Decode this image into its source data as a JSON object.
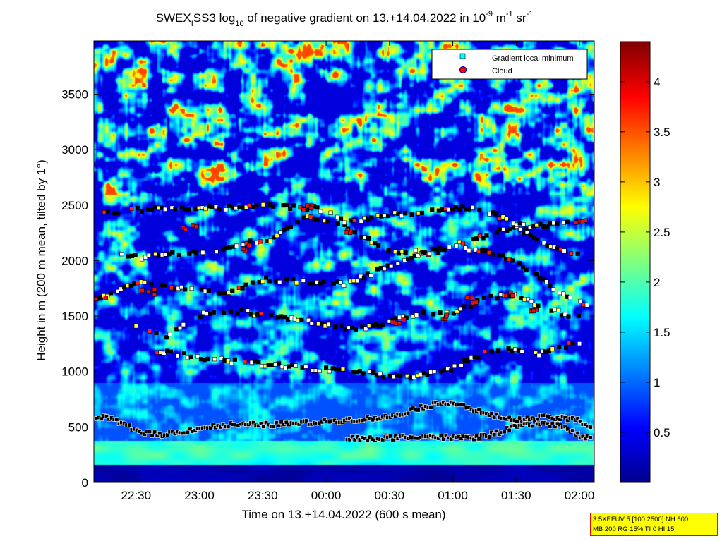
{
  "chart_data": {
    "type": "heatmap",
    "title": {
      "prefix": "SWEX",
      "prefix_sub": "I",
      "main": "SS3 log",
      "main_sub": "10",
      "rest": " of negative gradient on 13.+14.04.2022 in 10",
      "unit1_sup": "-9",
      "unit_m": " m",
      "unit2_sup": "-1",
      "unit_sr": " sr",
      "unit3_sup": "-1"
    },
    "xlabel": "Time on 13.+14.04.2022 (600 s mean)",
    "ylabel": "Height in m (200 m mean, tilted by 1°)",
    "x_ticks": [
      "22:30",
      "23:00",
      "23:30",
      "00:00",
      "00:30",
      "01:00",
      "01:30",
      "02:00"
    ],
    "y_ticks": [
      "0",
      "500",
      "1000",
      "1500",
      "2000",
      "2500",
      "3000",
      "3500"
    ],
    "xlim": [
      "22:10",
      "02:07"
    ],
    "ylim": [
      0,
      3980
    ],
    "colorbar": {
      "ticks": [
        "0.5",
        "1",
        "1.5",
        "2",
        "2.5",
        "3",
        "3.5",
        "4"
      ],
      "range": [
        0,
        4.4
      ],
      "colormap": "jet"
    },
    "legend": {
      "placement": "top-right",
      "entries": [
        {
          "label": "Gradient local minimum",
          "marker": "square",
          "color": "#00ffff"
        },
        {
          "label": "Cloud",
          "marker": "circle",
          "color": "#ff0000"
        }
      ]
    },
    "series": [
      {
        "name": "Gradient local minimum",
        "layers": [
          {
            "x": [
              "22:10",
              "22:20",
              "22:30",
              "22:40",
              "22:50",
              "23:00",
              "23:15",
              "23:30",
              "23:45",
              "00:00",
              "00:15",
              "00:30",
              "00:45",
              "01:00",
              "01:15",
              "01:30",
              "01:45",
              "02:00",
              "02:07"
            ],
            "y": [
              600,
              560,
              470,
              430,
              450,
              490,
              520,
              520,
              530,
              550,
              570,
              590,
              680,
              730,
              620,
              560,
              590,
              560,
              480
            ]
          },
          {
            "x": [
              "00:10",
              "00:20",
              "00:30",
              "00:45",
              "01:00",
              "01:10",
              "01:20",
              "01:30",
              "01:40",
              "01:50",
              "02:00",
              "02:07"
            ],
            "y": [
              400,
              390,
              400,
              420,
              400,
              400,
              440,
              500,
              530,
              520,
              420,
              380
            ]
          },
          {
            "x": [
              "22:40",
              "23:10",
              "23:40",
              "00:10",
              "00:40",
              "01:00",
              "01:20",
              "01:40",
              "02:00"
            ],
            "y": [
              1180,
              1100,
              1050,
              1000,
              950,
              1030,
              1210,
              1160,
              1270
            ]
          },
          {
            "x": [
              "22:30",
              "22:45",
              "23:00",
              "23:15",
              "23:30",
              "23:45",
              "00:00",
              "00:15",
              "00:30",
              "00:45",
              "01:00",
              "01:15",
              "01:30",
              "01:45",
              "02:00"
            ],
            "y": [
              1400,
              1320,
              1510,
              1550,
              1510,
              1470,
              1420,
              1380,
              1450,
              1520,
              1530,
              1650,
              1700,
              1560,
              1480
            ]
          },
          {
            "x": [
              "22:10",
              "22:30",
              "22:50",
              "23:10",
              "23:30",
              "23:50",
              "00:10",
              "00:30",
              "00:50",
              "01:10",
              "01:30",
              "01:50",
              "02:07"
            ],
            "y": [
              1650,
              1800,
              1750,
              1700,
              1830,
              1810,
              1790,
              1960,
              2080,
              2100,
              2000,
              1720,
              1560
            ]
          },
          {
            "x": [
              "22:20",
              "22:35",
              "22:50",
              "23:05",
              "23:20",
              "23:35",
              "23:50",
              "00:10",
              "00:30",
              "00:50",
              "01:10",
              "01:30",
              "01:50",
              "02:07"
            ],
            "y": [
              2050,
              2030,
              2070,
              2080,
              2150,
              2200,
              2410,
              2300,
              2080,
              2080,
              2200,
              2300,
              2100,
              2000
            ]
          },
          {
            "x": [
              "22:15",
              "22:40",
              "23:00",
              "23:30",
              "23:55",
              "00:10",
              "00:50",
              "01:10",
              "01:35",
              "01:55"
            ],
            "y": [
              2440,
              2470,
              2470,
              2490,
              2470,
              2350,
              2460,
              2480,
              2300,
              2340
            ]
          }
        ]
      },
      {
        "name": "Cloud",
        "x": [
          "22:13",
          "22:35",
          "22:55",
          "23:20",
          "23:50",
          "00:10",
          "00:35",
          "00:55",
          "01:10",
          "01:25",
          "01:40",
          "02:00"
        ],
        "y": [
          1640,
          1720,
          2300,
          2120,
          2470,
          2270,
          1460,
          1500,
          1640,
          1700,
          1560,
          2360
        ]
      }
    ]
  },
  "info_box": {
    "line1": "3.5XEFUV 5 [100 2500] NH 600",
    "line2": "MB 200 RG 15% TI 0 HI 15"
  }
}
